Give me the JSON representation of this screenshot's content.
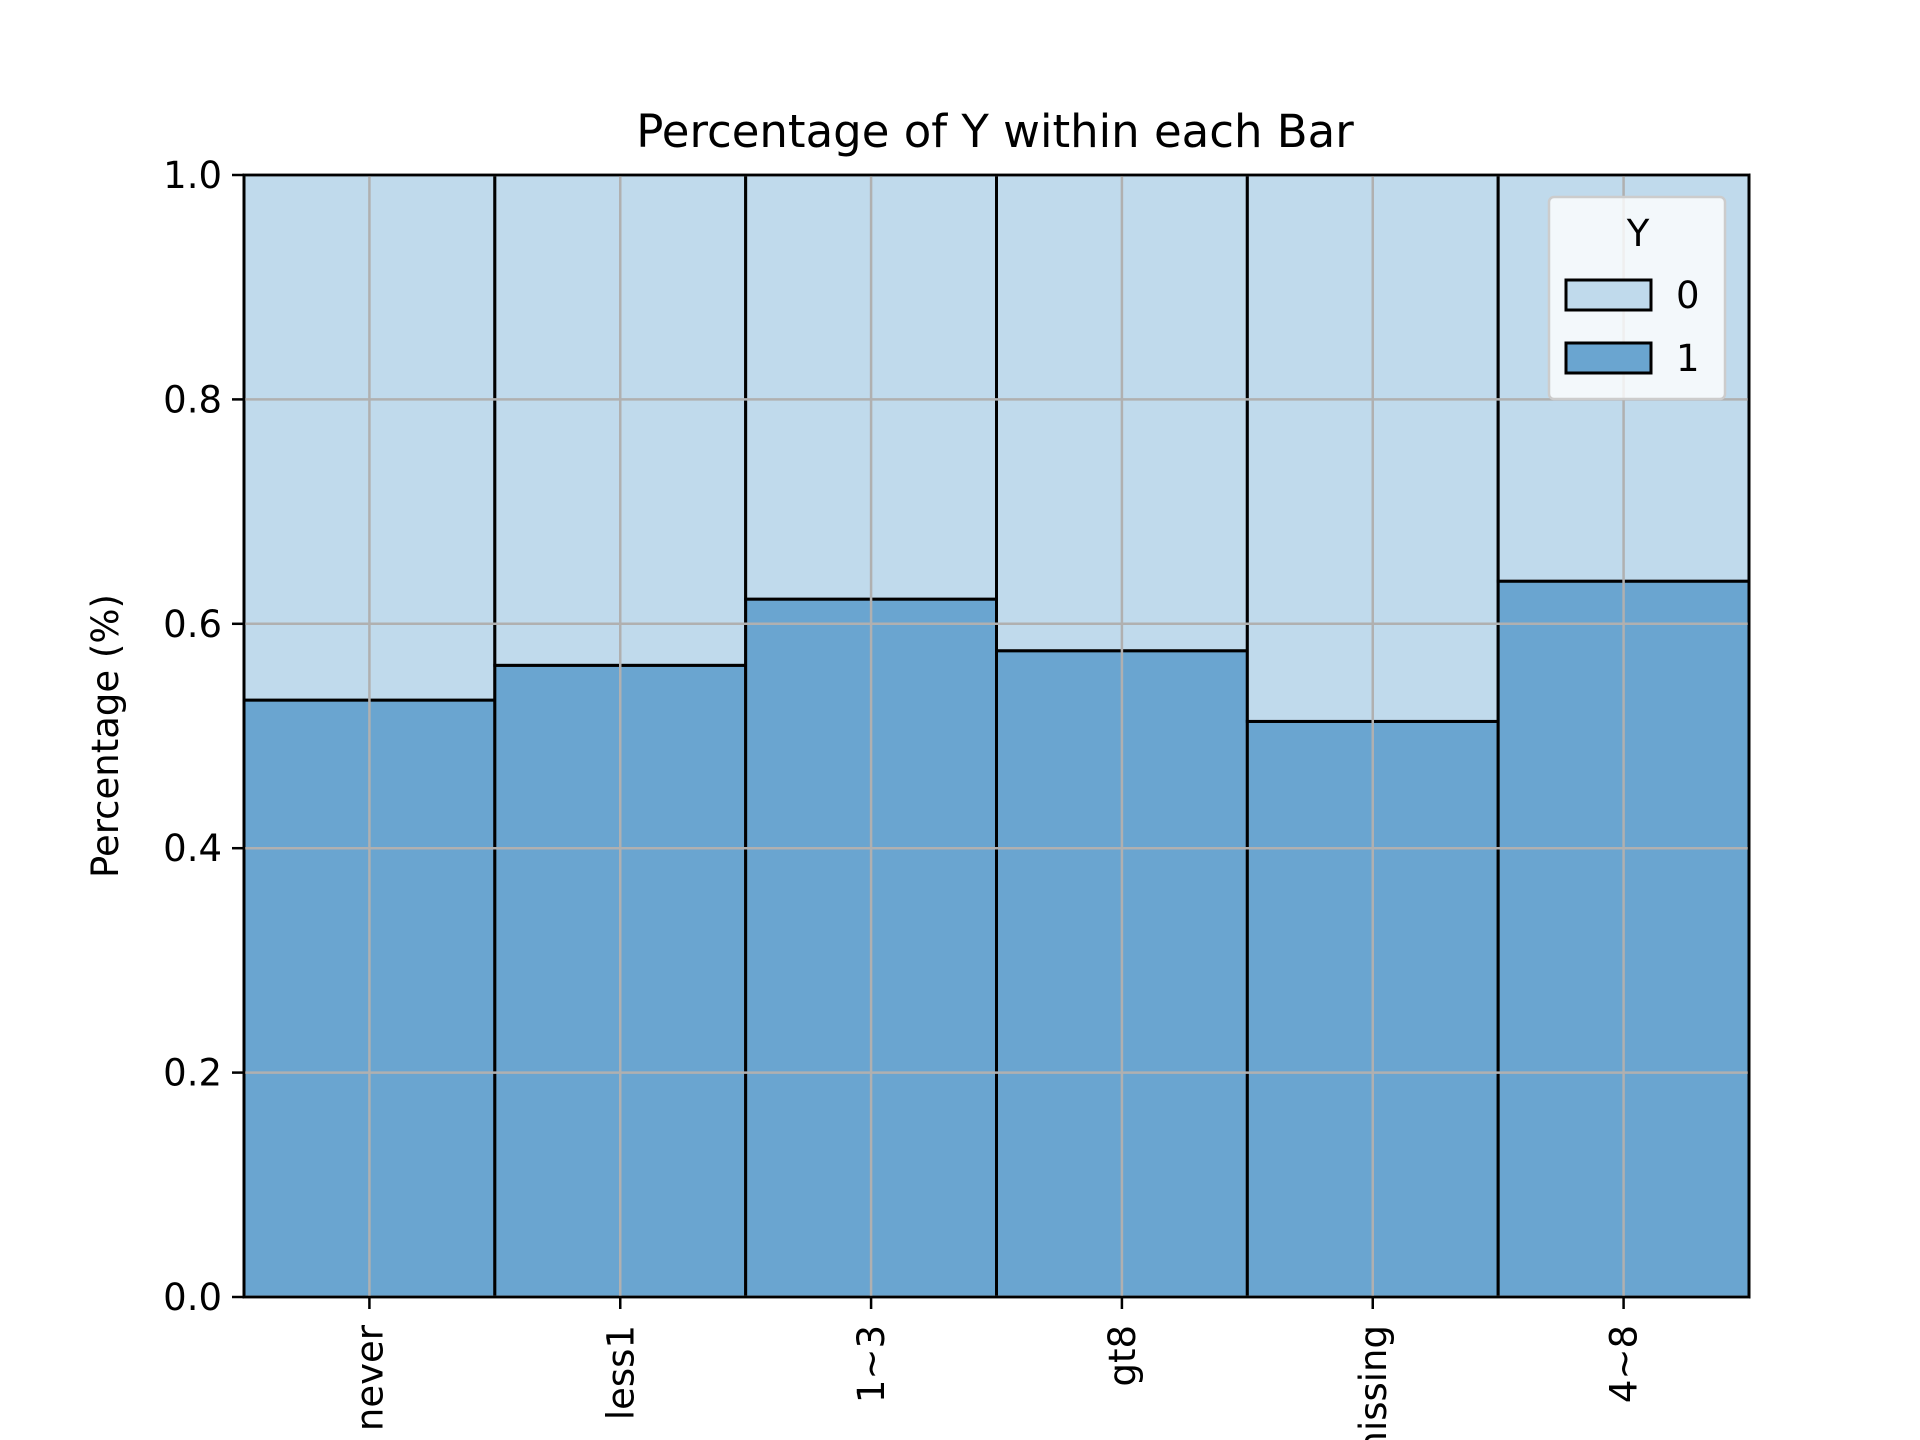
{
  "chart_data": {
    "type": "bar",
    "stacked": true,
    "title": "Percentage of Y within each Bar",
    "xlabel": "",
    "ylabel": "Percentage (%)",
    "categories": [
      "never",
      "less1",
      "1~3",
      "gt8",
      "missing",
      "4~8"
    ],
    "ylim": [
      0,
      1.0
    ],
    "yticks": [
      "0.0",
      "0.2",
      "0.4",
      "0.6",
      "0.8",
      "1.0"
    ],
    "grid": true,
    "legend": {
      "title": "Y",
      "placement": "top-right"
    },
    "series": [
      {
        "name": "1",
        "color": "#6aa5d0",
        "values": [
          0.532,
          0.563,
          0.622,
          0.576,
          0.513,
          0.638
        ]
      },
      {
        "name": "0",
        "color": "#c0daec",
        "values": [
          0.468,
          0.437,
          0.378,
          0.424,
          0.487,
          0.362
        ]
      }
    ]
  }
}
